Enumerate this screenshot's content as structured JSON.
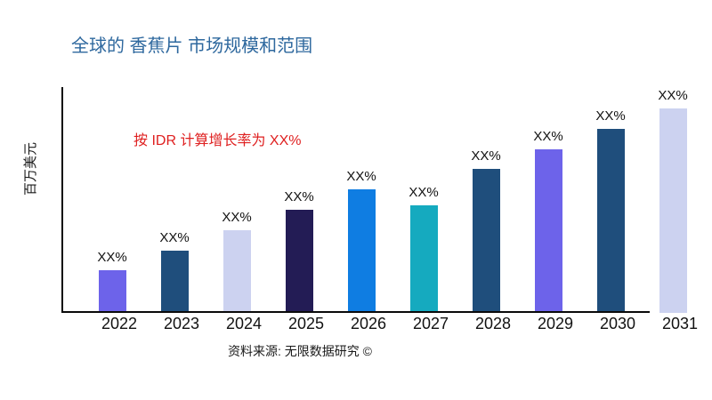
{
  "chart_data": {
    "type": "bar",
    "title": "全球的 香蕉片 市场规模和范围",
    "ylabel": "百万美元",
    "annotation": "按 IDR 计算增长率为 XX%",
    "source": "资料来源: 无限数据研究 ©",
    "categories": [
      "2022",
      "2023",
      "2024",
      "2025",
      "2026",
      "2027",
      "2028",
      "2029",
      "2030",
      "2031"
    ],
    "values": [
      20,
      30,
      40,
      50,
      60,
      52,
      70,
      80,
      90,
      100
    ],
    "bar_labels": [
      "XX%",
      "XX%",
      "XX%",
      "XX%",
      "XX%",
      "XX%",
      "XX%",
      "XX%",
      "XX%",
      "XX%"
    ],
    "bar_colors": [
      "#6D63EA",
      "#1F4E7C",
      "#CCD2F0",
      "#231C55",
      "#0F7DE2",
      "#15AABF",
      "#1F4E7C",
      "#6D63EA",
      "#1F4E7C",
      "#CCD2F0"
    ],
    "ylim": [
      0,
      100
    ],
    "grid": false,
    "legend": null,
    "title_color": "#2E689E",
    "annotation_color": "#DF2020"
  }
}
